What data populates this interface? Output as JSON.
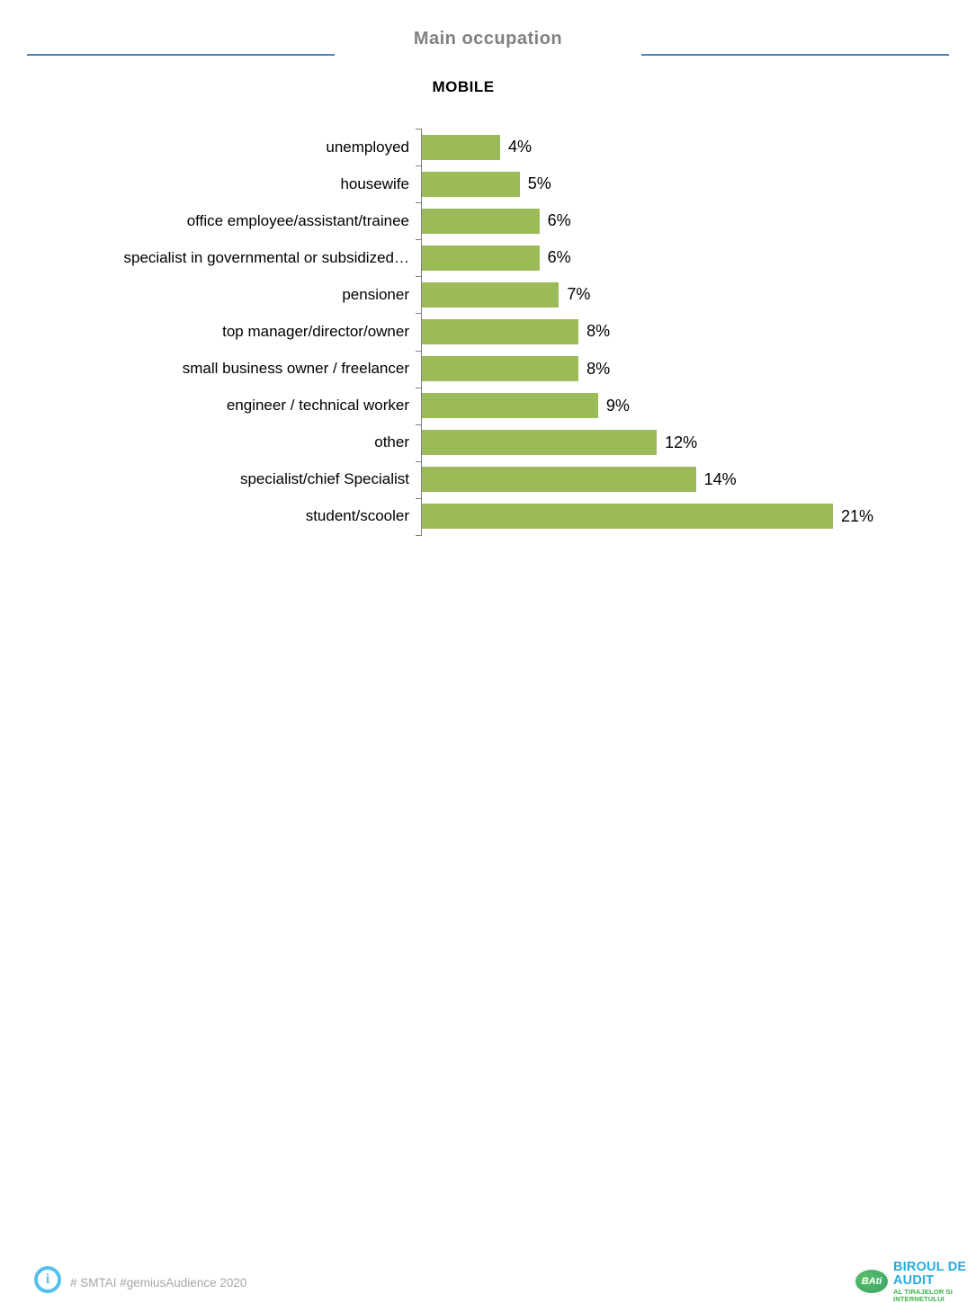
{
  "header": {
    "title": "Main occupation",
    "subtitle": "MOBILE"
  },
  "chart_data": {
    "type": "bar",
    "orientation": "horizontal",
    "title": "Main occupation",
    "subtitle": "MOBILE",
    "categories": [
      "unemployed",
      "housewife",
      "office employee/assistant/trainee",
      "specialist in governmental or subsidized…",
      "pensioner",
      "top manager/director/owner",
      "small business owner / freelancer",
      "engineer / technical worker",
      "other",
      "specialist/chief Specialist",
      "student/scooler"
    ],
    "values": [
      4,
      5,
      6,
      6,
      7,
      8,
      8,
      9,
      12,
      14,
      21
    ],
    "value_labels": [
      "4%",
      "5%",
      "6%",
      "6%",
      "7%",
      "8%",
      "8%",
      "9%",
      "12%",
      "14%",
      "21%"
    ],
    "unit": "%",
    "xlim": [
      0,
      21
    ],
    "grid": false,
    "legend": false,
    "bar_color": "#9bbb59",
    "axis_color": "#808080"
  },
  "footer": {
    "info_icon_glyph": "i",
    "hashtags": "# SMTAI #gemiusAudience 2020",
    "logo": {
      "badge": "BAti",
      "line1": "BIROUL DE AUDIT",
      "line2": "AL TIRAJELOR SI INTERNETULUI"
    }
  },
  "colors": {
    "header_rule": "#4f81bd",
    "title_gray": "#808080",
    "bar_green": "#9bbb59",
    "axis_gray": "#808080",
    "footer_text": "#a6a6a6",
    "info_blue": "#55c0ef",
    "logo_blue": "#29abe2",
    "logo_green": "#39b54a"
  }
}
